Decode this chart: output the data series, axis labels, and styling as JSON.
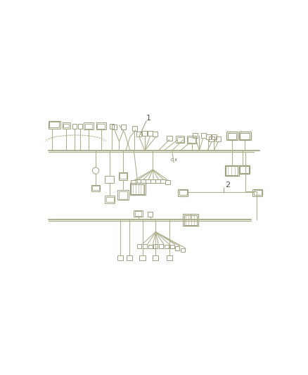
{
  "bg_color": "#ffffff",
  "line_color": "#b0b090",
  "dark_line": "#909070",
  "connector_color": "#a0a080",
  "fig_width": 4.38,
  "fig_height": 5.33,
  "dpi": 100,
  "label1": "1",
  "label2": "2",
  "label_fontsize": 8,
  "label_color": "#505040",
  "note_fontsize": 5
}
